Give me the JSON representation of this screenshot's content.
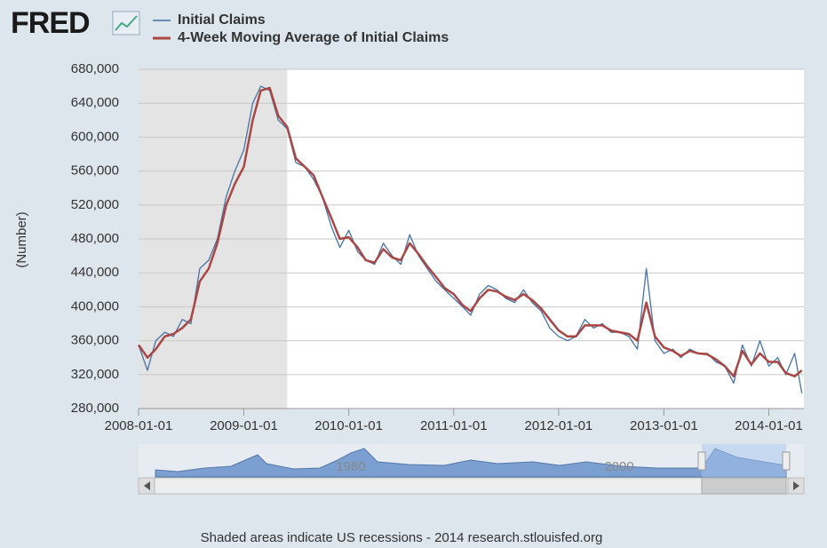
{
  "logo": "FRED",
  "footer": "Shaded areas indicate US recessions - 2014 research.stlouisfed.org",
  "navigator": {
    "labels": [
      "1980",
      "2000"
    ]
  },
  "chart_data": {
    "type": "line",
    "y_label": "(Number)",
    "x": [
      "2008-01-01",
      "2008-02-01",
      "2008-03-01",
      "2008-04-01",
      "2008-05-01",
      "2008-06-01",
      "2008-07-01",
      "2008-08-01",
      "2008-09-01",
      "2008-10-01",
      "2008-11-01",
      "2008-12-01",
      "2009-01-01",
      "2009-02-01",
      "2009-03-01",
      "2009-04-01",
      "2009-05-01",
      "2009-06-01",
      "2009-07-01",
      "2009-08-01",
      "2009-09-01",
      "2009-10-01",
      "2009-11-01",
      "2009-12-01",
      "2010-01-01",
      "2010-02-01",
      "2010-03-01",
      "2010-04-01",
      "2010-05-01",
      "2010-06-01",
      "2010-07-01",
      "2010-08-01",
      "2010-09-01",
      "2010-10-01",
      "2010-11-01",
      "2010-12-01",
      "2011-01-01",
      "2011-02-01",
      "2011-03-01",
      "2011-04-01",
      "2011-05-01",
      "2011-06-01",
      "2011-07-01",
      "2011-08-01",
      "2011-09-01",
      "2011-10-01",
      "2011-11-01",
      "2011-12-01",
      "2012-01-01",
      "2012-02-01",
      "2012-03-01",
      "2012-04-01",
      "2012-05-01",
      "2012-06-01",
      "2012-07-01",
      "2012-08-01",
      "2012-09-01",
      "2012-10-01",
      "2012-11-01",
      "2012-12-01",
      "2013-01-01",
      "2013-02-01",
      "2013-03-01",
      "2013-04-01",
      "2013-05-01",
      "2013-06-01",
      "2013-07-01",
      "2013-08-01",
      "2013-09-01",
      "2013-10-01",
      "2013-11-01",
      "2013-12-01",
      "2014-01-01",
      "2014-02-01",
      "2014-03-01",
      "2014-04-01",
      "2014-04-26"
    ],
    "series": [
      {
        "name": "Initial Claims",
        "color": "#4572a7",
        "values": [
          355000,
          325000,
          360000,
          370000,
          365000,
          385000,
          380000,
          445000,
          455000,
          480000,
          530000,
          560000,
          585000,
          640000,
          660000,
          655000,
          620000,
          610000,
          570000,
          565000,
          550000,
          530000,
          495000,
          470000,
          490000,
          465000,
          455000,
          450000,
          475000,
          460000,
          450000,
          485000,
          460000,
          445000,
          430000,
          420000,
          410000,
          400000,
          390000,
          415000,
          425000,
          420000,
          410000,
          405000,
          420000,
          405000,
          395000,
          375000,
          365000,
          360000,
          365000,
          385000,
          375000,
          380000,
          370000,
          370000,
          365000,
          350000,
          445000,
          360000,
          345000,
          350000,
          340000,
          350000,
          345000,
          345000,
          335000,
          330000,
          310000,
          355000,
          330000,
          360000,
          330000,
          340000,
          320000,
          345000,
          298000
        ]
      },
      {
        "name": "4-Week Moving Average of Initial Claims",
        "color": "#aa4643",
        "values": [
          355000,
          340000,
          350000,
          365000,
          368000,
          375000,
          385000,
          430000,
          445000,
          475000,
          520000,
          545000,
          565000,
          620000,
          655000,
          658000,
          625000,
          612000,
          575000,
          565000,
          555000,
          530000,
          505000,
          480000,
          482000,
          470000,
          455000,
          452000,
          468000,
          458000,
          455000,
          475000,
          462000,
          448000,
          435000,
          422000,
          415000,
          402000,
          395000,
          410000,
          420000,
          418000,
          412000,
          408000,
          415000,
          408000,
          398000,
          385000,
          372000,
          365000,
          365000,
          378000,
          378000,
          378000,
          372000,
          370000,
          368000,
          360000,
          405000,
          365000,
          352000,
          348000,
          342000,
          348000,
          345000,
          344000,
          338000,
          330000,
          318000,
          348000,
          332000,
          345000,
          335000,
          335000,
          322000,
          318000,
          325000
        ]
      }
    ],
    "xlim": [
      "2008-01-01",
      "2014-05-03"
    ],
    "xticks": [
      "2008-01-01",
      "2009-01-01",
      "2010-01-01",
      "2011-01-01",
      "2012-01-01",
      "2013-01-01",
      "2014-01-01"
    ],
    "ylim": [
      280000,
      680000
    ],
    "yticks": [
      {
        "value": 280000,
        "label": "280,000"
      },
      {
        "value": 320000,
        "label": "320,000"
      },
      {
        "value": 360000,
        "label": "360,000"
      },
      {
        "value": 400000,
        "label": "400,000"
      },
      {
        "value": 440000,
        "label": "440,000"
      },
      {
        "value": 480000,
        "label": "480,000"
      },
      {
        "value": 520000,
        "label": "520,000"
      },
      {
        "value": 560000,
        "label": "560,000"
      },
      {
        "value": 600000,
        "label": "600,000"
      },
      {
        "value": 640000,
        "label": "640,000"
      },
      {
        "value": 680000,
        "label": "680,000"
      }
    ],
    "recessions": [
      {
        "start": "2007-12-01",
        "end": "2009-06-01"
      }
    ],
    "grid": true
  }
}
